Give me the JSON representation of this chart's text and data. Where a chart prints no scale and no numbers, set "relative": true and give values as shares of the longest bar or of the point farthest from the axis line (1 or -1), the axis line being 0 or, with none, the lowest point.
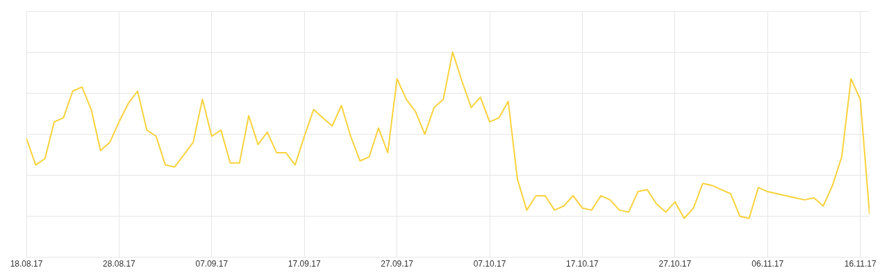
{
  "chart_data": {
    "type": "line",
    "relative": true,
    "grid": true,
    "xlim": [
      "--08-18",
      "--11-17"
    ],
    "xticks": [
      {
        "value": "--08-18",
        "label": "18.08.17"
      },
      {
        "value": "--08-28",
        "label": "28.08.17"
      },
      {
        "value": "--09-07",
        "label": "07.09.17"
      },
      {
        "value": "--09-17",
        "label": "17.09.17"
      },
      {
        "value": "--09-27",
        "label": "27.09.17"
      },
      {
        "value": "--10-07",
        "label": "07.10.17"
      },
      {
        "value": "--10-17",
        "label": "17.10.17"
      },
      {
        "value": "--10-27",
        "label": "27.10.17"
      },
      {
        "value": "--11-06",
        "label": "06.11.17"
      },
      {
        "value": "--11-16",
        "label": "16.11.17"
      }
    ],
    "x": [
      "--08-18",
      "--08-19",
      "--08-20",
      "--08-21",
      "--08-22",
      "--08-23",
      "--08-24",
      "--08-25",
      "--08-26",
      "--08-27",
      "--08-28",
      "--08-29",
      "--08-30",
      "--08-31",
      "--09-01",
      "--09-02",
      "--09-03",
      "--09-04",
      "--09-05",
      "--09-06",
      "--09-07",
      "--09-08",
      "--09-09",
      "--09-10",
      "--09-11",
      "--09-12",
      "--09-13",
      "--09-14",
      "--09-15",
      "--09-16",
      "--09-17",
      "--09-18",
      "--09-19",
      "--09-20",
      "--09-21",
      "--09-22",
      "--09-23",
      "--09-24",
      "--09-25",
      "--09-26",
      "--09-27",
      "--09-28",
      "--09-29",
      "--09-30",
      "--10-01",
      "--10-02",
      "--10-03",
      "--10-04",
      "--10-05",
      "--10-06",
      "--10-07",
      "--10-08",
      "--10-09",
      "--10-10",
      "--10-11",
      "--10-12",
      "--10-13",
      "--10-14",
      "--10-15",
      "--10-16",
      "--10-17",
      "--10-18",
      "--10-19",
      "--10-20",
      "--10-21",
      "--10-22",
      "--10-23",
      "--10-24",
      "--10-25",
      "--10-26",
      "--10-27",
      "--10-28",
      "--10-29",
      "--10-30",
      "--10-31",
      "--11-01",
      "--11-02",
      "--11-03",
      "--11-04",
      "--11-05",
      "--11-06",
      "--11-07",
      "--11-08",
      "--11-09",
      "--11-10",
      "--11-11",
      "--11-12",
      "--11-13",
      "--11-14",
      "--11-15",
      "--11-16",
      "--11-17"
    ],
    "series": [
      {
        "color": "#f9d23c",
        "values": [
          0.58,
          0.45,
          0.48,
          0.66,
          0.68,
          0.81,
          0.83,
          0.72,
          0.52,
          0.56,
          0.66,
          0.75,
          0.81,
          0.62,
          0.59,
          0.45,
          0.44,
          0.5,
          0.56,
          0.77,
          0.59,
          0.62,
          0.46,
          0.46,
          0.69,
          0.55,
          0.61,
          0.51,
          0.51,
          0.45,
          0.59,
          0.72,
          0.68,
          0.64,
          0.74,
          0.59,
          0.47,
          0.49,
          0.63,
          0.51,
          0.87,
          0.77,
          0.71,
          0.6,
          0.73,
          0.77,
          1,
          0.86,
          0.73,
          0.78,
          0.66,
          0.68,
          0.76,
          0.38,
          0.23,
          0.3,
          0.3,
          0.23,
          0.25,
          0.3,
          0.24,
          0.23,
          0.3,
          0.28,
          0.23,
          0.22,
          0.32,
          0.33,
          0.26,
          0.22,
          0.27,
          0.19,
          0.24,
          0.36,
          0.35,
          0.33,
          0.31,
          0.2,
          0.19,
          0.34,
          0.32,
          0.31,
          0.3,
          0.29,
          0.28,
          0.29,
          0.25,
          0.35,
          0.49,
          0.87,
          0.77,
          0.21
        ]
      }
    ]
  }
}
